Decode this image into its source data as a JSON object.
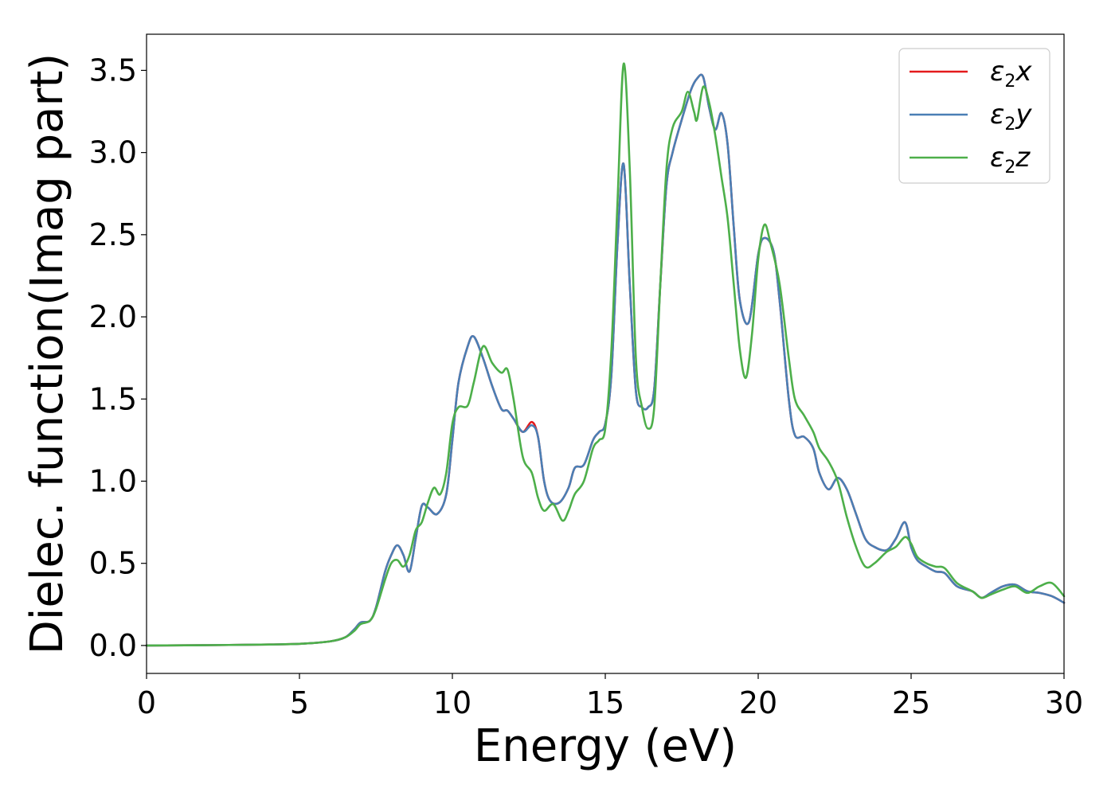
{
  "chart_data": {
    "type": "line",
    "xlabel": "Energy (eV)",
    "ylabel": "Dielec. function(Imag part)",
    "xlim": [
      0,
      30
    ],
    "ylim": [
      -0.17,
      3.72
    ],
    "xticks": [
      0,
      5,
      10,
      15,
      20,
      25,
      30
    ],
    "yticks": [
      0.0,
      0.5,
      1.0,
      1.5,
      2.0,
      2.5,
      3.0,
      3.5
    ],
    "xtick_labels": [
      "0",
      "5",
      "10",
      "15",
      "20",
      "25",
      "30"
    ],
    "ytick_labels": [
      "0.0",
      "0.5",
      "1.0",
      "1.5",
      "2.0",
      "2.5",
      "3.0",
      "3.5"
    ],
    "grid": false,
    "legend_position": "top-right",
    "series": [
      {
        "name": "ε2x",
        "legend": {
          "symbol": "ε",
          "sub": "2",
          "axis": "x"
        },
        "color": "#e41a1c",
        "x": [
          0,
          2,
          4,
          5,
          6,
          6.5,
          6.8,
          7.0,
          7.3,
          7.5,
          7.8,
          8.0,
          8.2,
          8.4,
          8.6,
          8.8,
          9.0,
          9.2,
          9.5,
          9.8,
          10.0,
          10.2,
          10.5,
          10.7,
          11.0,
          11.3,
          11.6,
          11.8,
          12.0,
          12.3,
          12.6,
          12.8,
          13.0,
          13.2,
          13.5,
          13.8,
          14.0,
          14.3,
          14.6,
          14.8,
          15.0,
          15.2,
          15.4,
          15.6,
          15.8,
          16.0,
          16.2,
          16.4,
          16.6,
          16.8,
          17.0,
          17.2,
          17.5,
          17.8,
          18.0,
          18.2,
          18.4,
          18.6,
          18.8,
          19.0,
          19.2,
          19.4,
          19.7,
          20.0,
          20.2,
          20.5,
          20.7,
          21.0,
          21.2,
          21.5,
          21.8,
          22.0,
          22.3,
          22.6,
          22.9,
          23.2,
          23.5,
          23.8,
          24.2,
          24.5,
          24.8,
          25.0,
          25.2,
          25.5,
          25.8,
          26.1,
          26.5,
          27.0,
          27.3,
          27.6,
          28.0,
          28.4,
          28.8,
          29.2,
          29.6,
          30.0
        ],
        "y": [
          0.0,
          0.002,
          0.006,
          0.01,
          0.025,
          0.05,
          0.1,
          0.14,
          0.15,
          0.23,
          0.45,
          0.55,
          0.61,
          0.55,
          0.45,
          0.65,
          0.85,
          0.84,
          0.8,
          0.92,
          1.25,
          1.6,
          1.82,
          1.88,
          1.75,
          1.58,
          1.44,
          1.43,
          1.38,
          1.3,
          1.36,
          1.27,
          1.0,
          0.88,
          0.87,
          0.96,
          1.08,
          1.1,
          1.25,
          1.3,
          1.35,
          1.65,
          2.45,
          2.93,
          2.2,
          1.55,
          1.45,
          1.45,
          1.56,
          2.2,
          2.8,
          3.0,
          3.2,
          3.38,
          3.45,
          3.46,
          3.27,
          3.14,
          3.24,
          3.05,
          2.55,
          2.1,
          1.97,
          2.38,
          2.48,
          2.4,
          2.1,
          1.5,
          1.28,
          1.27,
          1.2,
          1.05,
          0.95,
          1.02,
          0.95,
          0.8,
          0.65,
          0.6,
          0.58,
          0.65,
          0.75,
          0.6,
          0.52,
          0.48,
          0.45,
          0.44,
          0.36,
          0.33,
          0.29,
          0.32,
          0.36,
          0.37,
          0.33,
          0.32,
          0.3,
          0.26
        ]
      },
      {
        "name": "ε2y",
        "legend": {
          "symbol": "ε",
          "sub": "2",
          "axis": "y"
        },
        "color": "#4a7fb5",
        "x": [
          0,
          2,
          4,
          5,
          6,
          6.5,
          6.8,
          7.0,
          7.3,
          7.5,
          7.8,
          8.0,
          8.2,
          8.4,
          8.6,
          8.8,
          9.0,
          9.2,
          9.5,
          9.8,
          10.0,
          10.2,
          10.5,
          10.7,
          11.0,
          11.3,
          11.6,
          11.8,
          12.0,
          12.3,
          12.6,
          12.8,
          13.0,
          13.2,
          13.5,
          13.8,
          14.0,
          14.3,
          14.6,
          14.8,
          15.0,
          15.2,
          15.4,
          15.6,
          15.8,
          16.0,
          16.2,
          16.4,
          16.6,
          16.8,
          17.0,
          17.2,
          17.5,
          17.8,
          18.0,
          18.2,
          18.4,
          18.6,
          18.8,
          19.0,
          19.2,
          19.4,
          19.7,
          20.0,
          20.2,
          20.5,
          20.7,
          21.0,
          21.2,
          21.5,
          21.8,
          22.0,
          22.3,
          22.6,
          22.9,
          23.2,
          23.5,
          23.8,
          24.2,
          24.5,
          24.8,
          25.0,
          25.2,
          25.5,
          25.8,
          26.1,
          26.5,
          27.0,
          27.3,
          27.6,
          28.0,
          28.4,
          28.8,
          29.2,
          29.6,
          30.0
        ],
        "y": [
          0.0,
          0.002,
          0.006,
          0.01,
          0.025,
          0.05,
          0.1,
          0.14,
          0.15,
          0.23,
          0.45,
          0.55,
          0.61,
          0.55,
          0.45,
          0.65,
          0.85,
          0.84,
          0.8,
          0.92,
          1.25,
          1.6,
          1.82,
          1.88,
          1.75,
          1.58,
          1.44,
          1.43,
          1.38,
          1.3,
          1.34,
          1.27,
          1.0,
          0.88,
          0.87,
          0.96,
          1.08,
          1.1,
          1.25,
          1.3,
          1.35,
          1.65,
          2.45,
          2.93,
          2.2,
          1.55,
          1.45,
          1.45,
          1.56,
          2.2,
          2.8,
          3.0,
          3.2,
          3.38,
          3.45,
          3.46,
          3.27,
          3.14,
          3.24,
          3.05,
          2.55,
          2.1,
          1.97,
          2.38,
          2.48,
          2.4,
          2.1,
          1.5,
          1.28,
          1.27,
          1.2,
          1.05,
          0.95,
          1.02,
          0.95,
          0.8,
          0.65,
          0.6,
          0.58,
          0.65,
          0.75,
          0.6,
          0.52,
          0.48,
          0.45,
          0.44,
          0.36,
          0.33,
          0.29,
          0.32,
          0.36,
          0.37,
          0.33,
          0.32,
          0.3,
          0.26
        ]
      },
      {
        "name": "ε2z",
        "legend": {
          "symbol": "ε",
          "sub": "2",
          "axis": "z"
        },
        "color": "#4daf4a",
        "x": [
          0,
          2,
          4,
          5,
          6,
          6.5,
          6.8,
          7.0,
          7.3,
          7.5,
          7.8,
          8.0,
          8.2,
          8.4,
          8.6,
          8.8,
          9.0,
          9.2,
          9.4,
          9.6,
          9.8,
          10.0,
          10.2,
          10.5,
          10.7,
          11.0,
          11.3,
          11.6,
          11.8,
          12.0,
          12.3,
          12.6,
          12.8,
          13.0,
          13.3,
          13.6,
          13.8,
          14.0,
          14.3,
          14.6,
          14.8,
          15.0,
          15.2,
          15.4,
          15.6,
          15.8,
          16.0,
          16.2,
          16.4,
          16.6,
          16.8,
          17.0,
          17.2,
          17.5,
          17.7,
          17.9,
          18.0,
          18.2,
          18.4,
          18.6,
          18.8,
          19.0,
          19.2,
          19.4,
          19.6,
          19.8,
          20.0,
          20.2,
          20.4,
          20.7,
          21.0,
          21.2,
          21.5,
          21.8,
          22.0,
          22.3,
          22.6,
          22.9,
          23.2,
          23.5,
          23.8,
          24.2,
          24.5,
          24.8,
          25.0,
          25.2,
          25.5,
          25.8,
          26.1,
          26.5,
          27.0,
          27.3,
          27.6,
          28.0,
          28.4,
          28.8,
          29.2,
          29.6,
          30.0
        ],
        "y": [
          0.0,
          0.002,
          0.006,
          0.01,
          0.025,
          0.05,
          0.09,
          0.13,
          0.15,
          0.22,
          0.4,
          0.5,
          0.52,
          0.48,
          0.55,
          0.7,
          0.75,
          0.87,
          0.96,
          0.92,
          1.05,
          1.35,
          1.45,
          1.46,
          1.6,
          1.82,
          1.72,
          1.66,
          1.68,
          1.5,
          1.15,
          1.05,
          0.9,
          0.82,
          0.86,
          0.76,
          0.82,
          0.92,
          1.0,
          1.2,
          1.25,
          1.32,
          1.8,
          2.7,
          3.54,
          2.9,
          1.75,
          1.45,
          1.32,
          1.45,
          2.2,
          2.9,
          3.15,
          3.25,
          3.37,
          3.25,
          3.2,
          3.4,
          3.3,
          3.1,
          2.85,
          2.6,
          2.2,
          1.8,
          1.63,
          1.9,
          2.35,
          2.56,
          2.45,
          2.2,
          1.75,
          1.5,
          1.4,
          1.3,
          1.2,
          1.12,
          1.0,
          0.78,
          0.6,
          0.48,
          0.5,
          0.57,
          0.6,
          0.66,
          0.62,
          0.54,
          0.5,
          0.48,
          0.47,
          0.38,
          0.33,
          0.29,
          0.31,
          0.34,
          0.36,
          0.32,
          0.36,
          0.38,
          0.3
        ]
      }
    ]
  }
}
